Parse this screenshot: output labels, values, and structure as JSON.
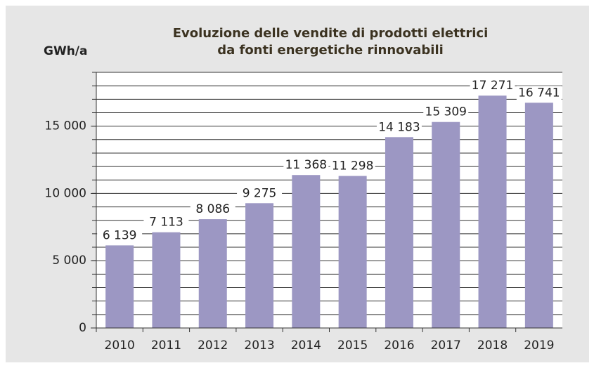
{
  "chart_data": {
    "type": "bar",
    "title": [
      "Evoluzione delle vendite di prodotti elettrici",
      "da fonti energetiche rinnovabili"
    ],
    "y_label": "GWh/a",
    "categories": [
      "2010",
      "2011",
      "2012",
      "2013",
      "2014",
      "2015",
      "2016",
      "2017",
      "2018",
      "2019"
    ],
    "values": [
      6139,
      7113,
      8086,
      9275,
      11368,
      11298,
      14183,
      15309,
      17271,
      16741
    ],
    "value_labels": [
      "6 139",
      "7 113",
      "8 086",
      "9 275",
      "11 368",
      "11 298",
      "14 183",
      "15 309",
      "17 271",
      "16 741"
    ],
    "color": "#9c97c3",
    "ylim": [
      0,
      19000
    ],
    "yticks": [
      0,
      {
        "value": 5000,
        "label": "5 000"
      },
      {
        "value": 10000,
        "label": "10 000"
      },
      {
        "value": 15000,
        "label": "15 000"
      }
    ],
    "minor_yticks": [
      1000,
      2000,
      3000,
      4000,
      5000,
      6000,
      7000,
      8000,
      9000,
      10000,
      11000,
      12000,
      13000,
      14000,
      15000,
      16000,
      17000,
      18000,
      19000
    ],
    "grid": true
  }
}
